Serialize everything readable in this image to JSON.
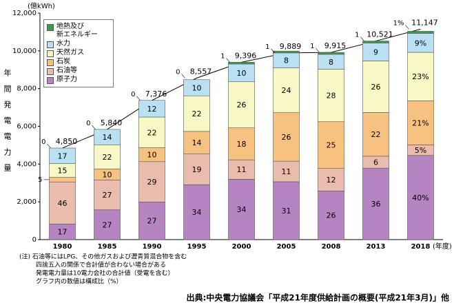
{
  "chart_data": {
    "type": "stacked_bar",
    "y_unit": "(億kWh)",
    "ylabel": "年間発電電力量",
    "x_unit": "(年度)",
    "categories": [
      "1980",
      "1985",
      "1990",
      "1995",
      "2000",
      "2005",
      "2008",
      "2013",
      "2018"
    ],
    "ylim": [
      0,
      12000
    ],
    "yticks": [
      0,
      {
        "value": 2000,
        "label": "2,000"
      },
      {
        "value": 4000,
        "label": "4,000"
      },
      {
        "value": 6000,
        "label": "6,000"
      },
      {
        "value": 8000,
        "label": "8,000"
      },
      {
        "value": 10000,
        "label": "10,000"
      },
      {
        "value": 12000,
        "label": "12,000"
      }
    ],
    "grid": false,
    "legend": "top-left",
    "series": [
      {
        "name": "原子力",
        "color": "#b784c2",
        "values": [
          17,
          27,
          27,
          34,
          34,
          31,
          26,
          36,
          40
        ],
        "value_labels": [
          "17",
          "27",
          "27",
          "34",
          "34",
          "31",
          "26",
          "36",
          "40%"
        ]
      },
      {
        "name": "石油等",
        "color": "#e9bcae",
        "values": [
          46,
          27,
          29,
          19,
          11,
          11,
          12,
          6,
          5
        ],
        "value_labels": [
          "46",
          "27",
          "29",
          "19",
          "11",
          "11",
          "12",
          "6",
          "5%"
        ]
      },
      {
        "name": "石炭",
        "color": "#f7c27f",
        "values": [
          5,
          10,
          10,
          14,
          18,
          26,
          25,
          22,
          21
        ],
        "value_labels": [
          "5",
          "10",
          "10",
          "14",
          "18",
          "26",
          "25",
          "22",
          "21%"
        ]
      },
      {
        "name": "天然ガス",
        "color": "#f8f8c6",
        "values": [
          15,
          22,
          22,
          22,
          26,
          24,
          28,
          26,
          23
        ],
        "value_labels": [
          "15",
          "22",
          "22",
          "22",
          "26",
          "24",
          "28",
          "26",
          "23%"
        ]
      },
      {
        "name": "水力",
        "color": "#b9e1f3",
        "values": [
          17,
          14,
          12,
          10,
          10,
          8,
          8,
          9,
          9
        ],
        "value_labels": [
          "17",
          "14",
          "12",
          "10",
          "10",
          "8",
          "8",
          "9",
          "9%"
        ]
      },
      {
        "name": "地熱及び\n新エネルギー",
        "color": "#3f9a4f",
        "values": [
          0,
          0,
          0,
          0,
          1,
          1,
          1,
          1,
          1
        ],
        "value_labels": [
          "0",
          "0",
          "0",
          "0",
          "1",
          "1",
          "1",
          "1",
          "1%"
        ]
      }
    ],
    "totals": {
      "values": [
        4850,
        5840,
        7376,
        8557,
        9396,
        9889,
        9915,
        10521,
        11147
      ],
      "value_labels": [
        "4,850",
        "5,840",
        "7,376",
        "8,557",
        "9,396",
        "9,889",
        "9,915",
        "10,521",
        "11,147"
      ]
    },
    "notes": [
      "(注) 石油等にはLPG、その他ガスおよび瀝青質混合物を含む",
      "四捨五入の関係で合計値が合わない場合がある",
      "発電電力量は10電力会社の合計値（受電を含む）",
      "グラフ内の数値は構成比（%）"
    ],
    "source": "出典:中央電力協議会「平成21年度供給計画の概要(平成21年3月)」他"
  }
}
